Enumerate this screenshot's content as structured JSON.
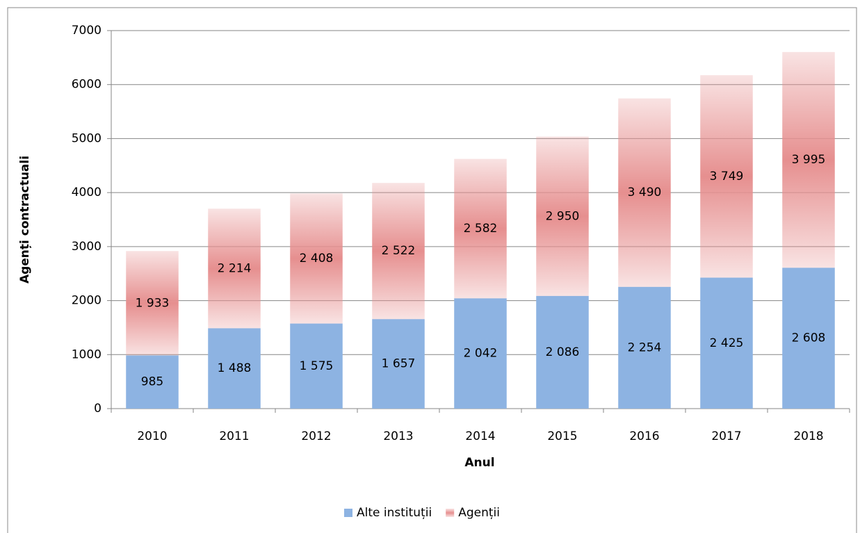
{
  "chart_data": {
    "type": "stacked_bar",
    "x_label": "Anul",
    "y_label": "Agenți contractuali",
    "categories": [
      "2010",
      "2011",
      "2012",
      "2013",
      "2014",
      "2015",
      "2016",
      "2017",
      "2018"
    ],
    "series": [
      {
        "name": "Alte instituții",
        "color": "#8db3e2",
        "values": [
          985,
          1488,
          1575,
          1657,
          2042,
          2086,
          2254,
          2425,
          2608
        ],
        "value_labels": [
          "985",
          "1 488",
          "1 575",
          "1 657",
          "2 042",
          "2 086",
          "2 254",
          "2 425",
          "2 608"
        ]
      },
      {
        "name": "Agenții",
        "color": "#e68f8f",
        "values": [
          1933,
          2214,
          2408,
          2522,
          2582,
          2950,
          3490,
          3749,
          3995
        ],
        "value_labels": [
          "1 933",
          "2 214",
          "2 408",
          "2 522",
          "2 582",
          "2 950",
          "3 490",
          "3 749",
          "3 995"
        ]
      }
    ],
    "ylim": [
      0,
      7000
    ],
    "yticks": [
      0,
      1000,
      2000,
      3000,
      4000,
      5000,
      6000,
      7000
    ],
    "grid": true,
    "legend": "bottom"
  }
}
